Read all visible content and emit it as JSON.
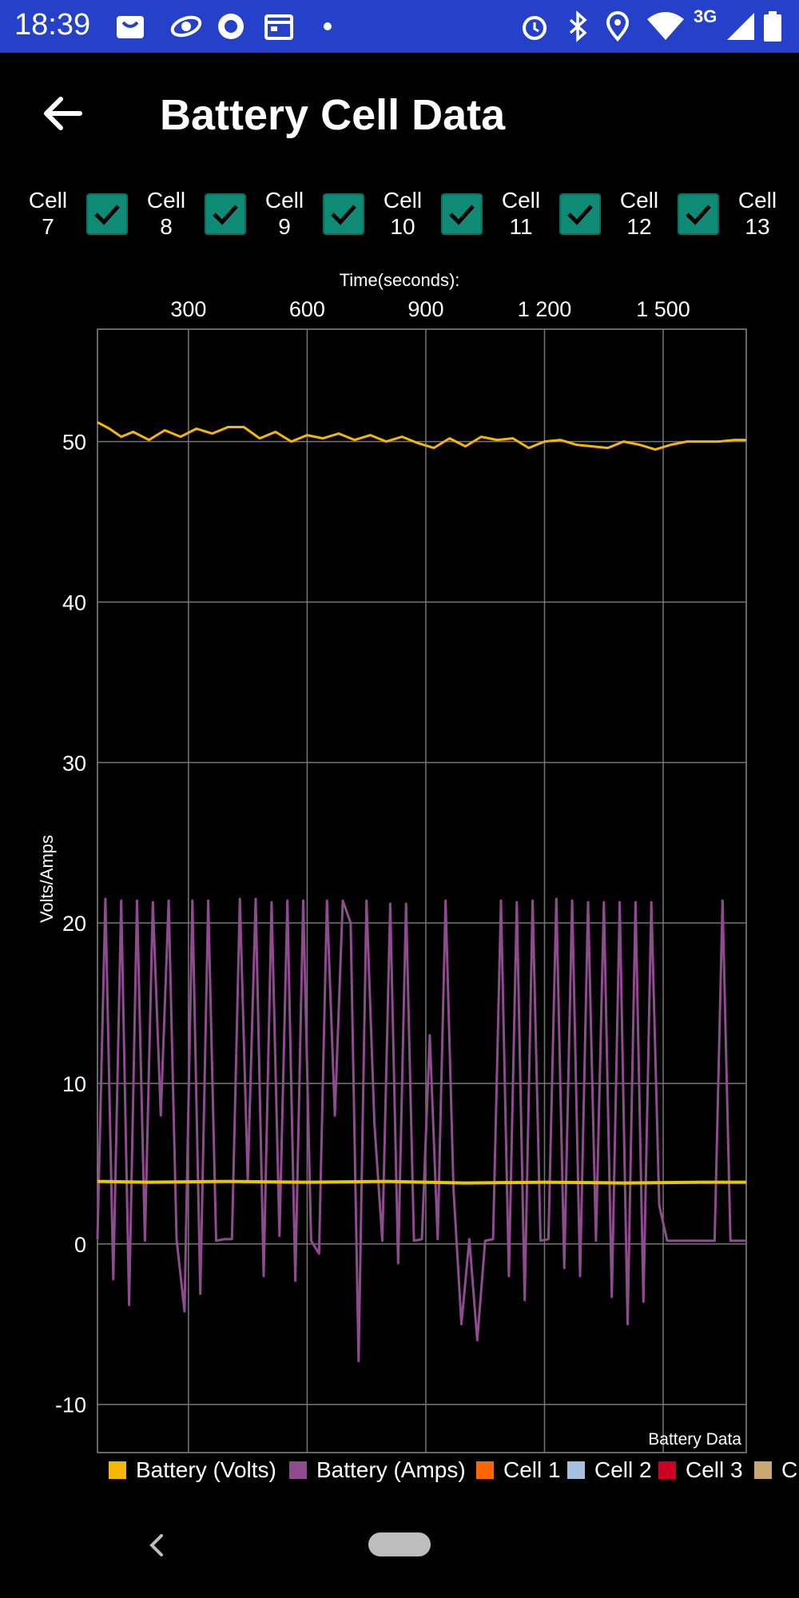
{
  "status": {
    "time": "18:39",
    "network": "3G",
    "icons_left": [
      "bag-icon",
      "saturn-icon",
      "record-icon",
      "calendar-icon",
      "dot-icon"
    ],
    "icons_right": [
      "alarm-icon",
      "bluetooth-icon",
      "location-icon",
      "wifi-icon",
      "signal-icon",
      "battery-icon"
    ]
  },
  "appbar": {
    "title": "Battery Cell Data",
    "back_icon": "back-arrow-icon"
  },
  "cells": [
    {
      "word": "Cell",
      "num": "7",
      "checked": true
    },
    {
      "word": "Cell",
      "num": "8",
      "checked": true
    },
    {
      "word": "Cell",
      "num": "9",
      "checked": true
    },
    {
      "word": "Cell",
      "num": "10",
      "checked": true
    },
    {
      "word": "Cell",
      "num": "11",
      "checked": true
    },
    {
      "word": "Cell",
      "num": "12",
      "checked": true
    },
    {
      "word": "Cell",
      "num": "13",
      "checked": false
    }
  ],
  "chart_data": {
    "type": "line",
    "title": "",
    "xlabel": "Time(seconds):",
    "ylabel": "Volts/Amps",
    "annotation": "Battery Data",
    "xlim": [
      70,
      1710
    ],
    "ylim": [
      -13,
      57
    ],
    "xticks": [
      300,
      600,
      900,
      1200,
      1500
    ],
    "xtick_labels": [
      "300",
      "600",
      "900",
      "1 200",
      "1 500"
    ],
    "yticks": [
      -10,
      0,
      10,
      20,
      30,
      40,
      50
    ],
    "yticks_labels": [
      "-10",
      "0",
      "10",
      "20",
      "30",
      "40",
      "50"
    ],
    "grid": true,
    "series": [
      {
        "name": "Battery (Volts)",
        "color": "#f5b800",
        "x": [
          70,
          100,
          130,
          160,
          200,
          240,
          280,
          320,
          360,
          400,
          440,
          480,
          520,
          560,
          600,
          640,
          680,
          720,
          760,
          800,
          840,
          880,
          920,
          960,
          1000,
          1040,
          1080,
          1120,
          1160,
          1200,
          1240,
          1280,
          1320,
          1360,
          1400,
          1440,
          1480,
          1520,
          1560,
          1600,
          1640,
          1680,
          1710
        ],
        "y": [
          51.2,
          50.8,
          50.3,
          50.6,
          50.1,
          50.7,
          50.3,
          50.8,
          50.5,
          50.9,
          50.9,
          50.2,
          50.6,
          50.0,
          50.4,
          50.2,
          50.5,
          50.1,
          50.4,
          50.0,
          50.3,
          49.9,
          49.6,
          50.2,
          49.7,
          50.3,
          50.1,
          50.2,
          49.6,
          50.0,
          50.1,
          49.8,
          49.7,
          49.6,
          50.0,
          49.8,
          49.5,
          49.8,
          50.0,
          50.0,
          50.0,
          50.1,
          50.1
        ]
      },
      {
        "name": "Battery (Amps)",
        "color": "#8e4b8e",
        "x": [
          70,
          90,
          110,
          130,
          150,
          170,
          190,
          210,
          230,
          250,
          270,
          290,
          310,
          330,
          350,
          370,
          390,
          410,
          430,
          450,
          470,
          490,
          510,
          530,
          550,
          570,
          590,
          610,
          630,
          650,
          670,
          690,
          710,
          730,
          750,
          770,
          790,
          810,
          830,
          850,
          870,
          890,
          910,
          930,
          950,
          970,
          990,
          1010,
          1030,
          1050,
          1070,
          1090,
          1110,
          1130,
          1150,
          1170,
          1190,
          1210,
          1230,
          1250,
          1270,
          1290,
          1310,
          1330,
          1350,
          1370,
          1390,
          1410,
          1430,
          1450,
          1470,
          1490,
          1510,
          1530,
          1550,
          1570,
          1590,
          1610,
          1630,
          1650,
          1670,
          1690,
          1710
        ],
        "y": [
          0.3,
          21.5,
          -2.2,
          21.4,
          -3.8,
          21.4,
          0.2,
          21.3,
          8.0,
          21.4,
          0.3,
          -4.2,
          21.4,
          -3.1,
          21.4,
          0.2,
          0.3,
          0.3,
          21.5,
          4.0,
          21.5,
          -2.0,
          21.3,
          0.5,
          21.4,
          -2.3,
          21.4,
          0.2,
          -0.6,
          21.4,
          8.0,
          21.4,
          20.0,
          -7.3,
          21.4,
          7.5,
          0.2,
          21.2,
          -1.2,
          21.2,
          0.2,
          0.3,
          13.0,
          0.3,
          21.4,
          3.4,
          -5.0,
          0.3,
          -6.0,
          0.2,
          0.3,
          21.4,
          -2.0,
          21.3,
          -3.5,
          21.4,
          0.2,
          0.3,
          21.5,
          -1.5,
          21.4,
          -2.0,
          21.3,
          0.2,
          21.3,
          -3.3,
          21.3,
          -5.0,
          21.3,
          -3.6,
          21.3,
          2.4,
          0.2,
          0.2,
          0.2,
          0.2,
          0.2,
          0.2,
          0.2,
          21.4,
          0.2,
          0.2,
          0.2
        ]
      },
      {
        "name": "Cell 1",
        "color": "#ff6600",
        "x": [
          70,
          1710
        ],
        "y": [
          3.9,
          3.9
        ]
      },
      {
        "name": "Cell 2",
        "color": "#a7c0de",
        "x": [
          70,
          1710
        ],
        "y": [
          3.85,
          3.85
        ]
      },
      {
        "name": "Cell 3",
        "color": "#cc0022",
        "x": [
          70,
          1710
        ],
        "y": [
          3.8,
          3.8
        ]
      }
    ],
    "overlay_series": {
      "color": "#e6c800",
      "x": [
        70,
        200,
        400,
        600,
        800,
        1000,
        1200,
        1400,
        1600,
        1710
      ],
      "y": [
        3.9,
        3.85,
        3.9,
        3.85,
        3.9,
        3.8,
        3.85,
        3.8,
        3.85,
        3.85
      ]
    }
  },
  "legend": [
    {
      "label": "Battery (Volts)",
      "color": "#f5b800"
    },
    {
      "label": "Battery (Amps)",
      "color": "#8e4b8e"
    },
    {
      "label": "Cell 1",
      "color": "#ff6600"
    },
    {
      "label": "Cell 2",
      "color": "#a7c0de"
    },
    {
      "label": "Cell 3",
      "color": "#cc0022"
    },
    {
      "label": "C",
      "color": "#c9a672"
    }
  ]
}
